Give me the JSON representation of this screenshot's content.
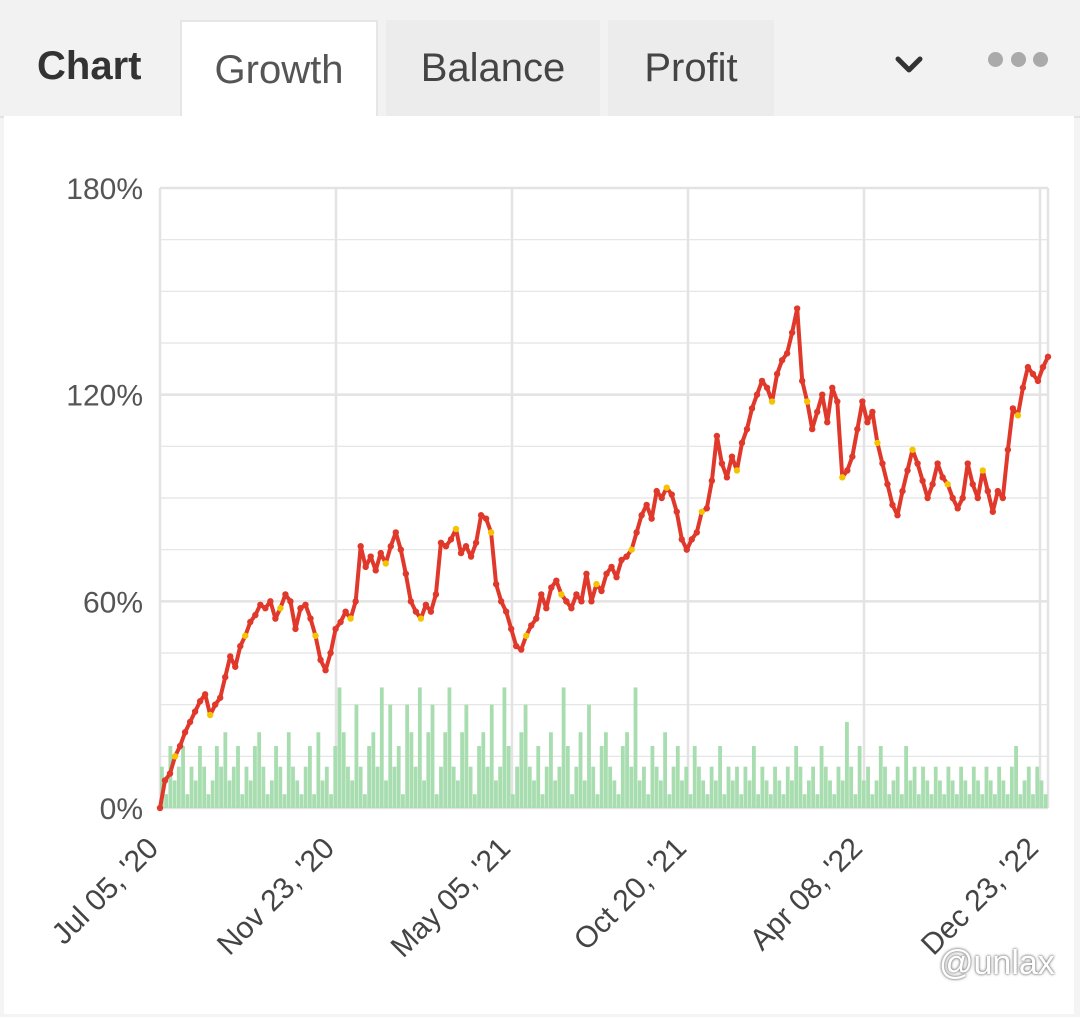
{
  "tabs": {
    "title": "Chart",
    "items": [
      "Growth",
      "Balance",
      "Profit"
    ],
    "active": "Growth"
  },
  "watermark": "@unlax",
  "colors": {
    "growth_line": "#e0392b",
    "growth_marker_alt": "#f5c400",
    "volume_bars": "#a8ddb0",
    "grid": "#e3e3e3"
  },
  "chart_data": {
    "type": "line",
    "y_ticks": [
      "180%",
      "120%",
      "60%",
      "0%"
    ],
    "ylim": [
      0,
      180
    ],
    "x_ticks": [
      "Jul 05, '20",
      "Nov 23, '20",
      "May 05, '21",
      "Oct 20, '21",
      "Apr 08, '22",
      "Dec 23, '22"
    ],
    "grid": true,
    "series": [
      {
        "kind": "line",
        "points": [
          [
            0,
            0
          ],
          [
            2,
            8
          ],
          [
            4,
            10
          ],
          [
            6,
            15
          ],
          [
            8,
            18
          ],
          [
            10,
            22
          ],
          [
            12,
            25
          ],
          [
            14,
            28
          ],
          [
            16,
            31
          ],
          [
            18,
            33
          ],
          [
            20,
            27
          ],
          [
            22,
            30
          ],
          [
            24,
            32
          ],
          [
            26,
            38
          ],
          [
            28,
            44
          ],
          [
            30,
            41
          ],
          [
            32,
            47
          ],
          [
            34,
            50
          ],
          [
            36,
            54
          ],
          [
            38,
            56
          ],
          [
            40,
            59
          ],
          [
            42,
            58
          ],
          [
            44,
            60
          ],
          [
            46,
            55
          ],
          [
            48,
            58
          ],
          [
            50,
            62
          ],
          [
            52,
            60
          ],
          [
            54,
            52
          ],
          [
            56,
            58
          ],
          [
            58,
            59
          ],
          [
            60,
            55
          ],
          [
            62,
            50
          ],
          [
            64,
            43
          ],
          [
            66,
            40
          ],
          [
            68,
            45
          ],
          [
            70,
            52
          ],
          [
            72,
            54
          ],
          [
            74,
            57
          ],
          [
            76,
            55
          ],
          [
            78,
            60
          ],
          [
            80,
            76
          ],
          [
            82,
            70
          ],
          [
            84,
            73
          ],
          [
            86,
            69
          ],
          [
            88,
            74
          ],
          [
            90,
            71
          ],
          [
            92,
            76
          ],
          [
            94,
            80
          ],
          [
            96,
            75
          ],
          [
            98,
            68
          ],
          [
            100,
            60
          ],
          [
            102,
            57
          ],
          [
            104,
            55
          ],
          [
            106,
            59
          ],
          [
            108,
            57
          ],
          [
            110,
            62
          ],
          [
            112,
            77
          ],
          [
            114,
            76
          ],
          [
            116,
            78
          ],
          [
            118,
            81
          ],
          [
            120,
            74
          ],
          [
            122,
            76
          ],
          [
            124,
            73
          ],
          [
            126,
            77
          ],
          [
            128,
            85
          ],
          [
            130,
            84
          ],
          [
            132,
            80
          ],
          [
            134,
            65
          ],
          [
            136,
            60
          ],
          [
            138,
            57
          ],
          [
            140,
            52
          ],
          [
            142,
            47
          ],
          [
            144,
            46
          ],
          [
            146,
            50
          ],
          [
            148,
            53
          ],
          [
            150,
            55
          ],
          [
            152,
            62
          ],
          [
            154,
            58
          ],
          [
            156,
            64
          ],
          [
            158,
            66
          ],
          [
            160,
            62
          ],
          [
            162,
            60
          ],
          [
            164,
            58
          ],
          [
            166,
            62
          ],
          [
            168,
            60
          ],
          [
            170,
            68
          ],
          [
            172,
            60
          ],
          [
            174,
            65
          ],
          [
            176,
            63
          ],
          [
            178,
            68
          ],
          [
            180,
            70
          ],
          [
            182,
            67
          ],
          [
            184,
            72
          ],
          [
            186,
            73
          ],
          [
            188,
            75
          ],
          [
            190,
            80
          ],
          [
            192,
            85
          ],
          [
            194,
            88
          ],
          [
            196,
            84
          ],
          [
            198,
            92
          ],
          [
            200,
            90
          ],
          [
            202,
            93
          ],
          [
            204,
            91
          ],
          [
            206,
            86
          ],
          [
            208,
            78
          ],
          [
            210,
            75
          ],
          [
            212,
            78
          ],
          [
            214,
            80
          ],
          [
            216,
            86
          ],
          [
            218,
            87
          ],
          [
            220,
            95
          ],
          [
            222,
            108
          ],
          [
            224,
            100
          ],
          [
            226,
            96
          ],
          [
            228,
            102
          ],
          [
            230,
            98
          ],
          [
            232,
            106
          ],
          [
            234,
            110
          ],
          [
            236,
            116
          ],
          [
            238,
            120
          ],
          [
            240,
            124
          ],
          [
            242,
            122
          ],
          [
            244,
            118
          ],
          [
            246,
            126
          ],
          [
            248,
            130
          ],
          [
            250,
            132
          ],
          [
            252,
            138
          ],
          [
            254,
            145
          ],
          [
            256,
            124
          ],
          [
            258,
            118
          ],
          [
            260,
            110
          ],
          [
            262,
            115
          ],
          [
            264,
            120
          ],
          [
            266,
            112
          ],
          [
            268,
            122
          ],
          [
            270,
            118
          ],
          [
            272,
            96
          ],
          [
            274,
            98
          ],
          [
            276,
            102
          ],
          [
            278,
            110
          ],
          [
            280,
            118
          ],
          [
            282,
            112
          ],
          [
            284,
            115
          ],
          [
            286,
            106
          ],
          [
            288,
            100
          ],
          [
            290,
            94
          ],
          [
            292,
            88
          ],
          [
            294,
            85
          ],
          [
            296,
            92
          ],
          [
            298,
            98
          ],
          [
            300,
            104
          ],
          [
            302,
            100
          ],
          [
            304,
            95
          ],
          [
            306,
            90
          ],
          [
            308,
            94
          ],
          [
            310,
            100
          ],
          [
            312,
            96
          ],
          [
            314,
            94
          ],
          [
            316,
            90
          ],
          [
            318,
            87
          ],
          [
            320,
            90
          ],
          [
            322,
            100
          ],
          [
            324,
            94
          ],
          [
            326,
            90
          ],
          [
            328,
            98
          ],
          [
            330,
            92
          ],
          [
            332,
            86
          ],
          [
            334,
            92
          ],
          [
            336,
            90
          ],
          [
            338,
            104
          ],
          [
            340,
            116
          ],
          [
            342,
            114
          ],
          [
            344,
            122
          ],
          [
            346,
            128
          ],
          [
            348,
            126
          ],
          [
            350,
            124
          ],
          [
            352,
            128
          ],
          [
            354,
            131
          ]
        ]
      },
      {
        "kind": "bars",
        "values": [
          12,
          4,
          18,
          8,
          12,
          18,
          4,
          12,
          8,
          18,
          12,
          4,
          8,
          18,
          12,
          22,
          8,
          12,
          18,
          4,
          12,
          8,
          18,
          22,
          12,
          4,
          8,
          18,
          12,
          4,
          22,
          12,
          8,
          4,
          12,
          18,
          4,
          22,
          8,
          12,
          4,
          18,
          35,
          22,
          12,
          8,
          30,
          12,
          4,
          18,
          22,
          12,
          35,
          8,
          30,
          12,
          18,
          4,
          30,
          22,
          12,
          35,
          8,
          22,
          30,
          4,
          12,
          22,
          35,
          12,
          8,
          22,
          30,
          12,
          4,
          18,
          22,
          12,
          30,
          8,
          12,
          35,
          18,
          4,
          12,
          22,
          30,
          12,
          8,
          18,
          4,
          12,
          22,
          8,
          12,
          35,
          18,
          4,
          12,
          22,
          8,
          30,
          12,
          4,
          18,
          22,
          12,
          8,
          4,
          18,
          22,
          12,
          35,
          8,
          12,
          4,
          18,
          12,
          8,
          22,
          4,
          12,
          18,
          8,
          12,
          4,
          18,
          12,
          8,
          4,
          12,
          8,
          18,
          4,
          12,
          8,
          12,
          4,
          12,
          8,
          18,
          4,
          12,
          8,
          4,
          12,
          8,
          4,
          12,
          8,
          18,
          12,
          4,
          8,
          12,
          4,
          18,
          12,
          8,
          4,
          12,
          8,
          25,
          12,
          4,
          18,
          8,
          12,
          4,
          8,
          18,
          12,
          4,
          8,
          12,
          4,
          18,
          8,
          12,
          4,
          12,
          8,
          4,
          12,
          8,
          4,
          12,
          8,
          4,
          12,
          8,
          4,
          12,
          8,
          4,
          12,
          8,
          4,
          12,
          8,
          4,
          12,
          18,
          4,
          8,
          12,
          4,
          12,
          8,
          4
        ]
      }
    ]
  }
}
